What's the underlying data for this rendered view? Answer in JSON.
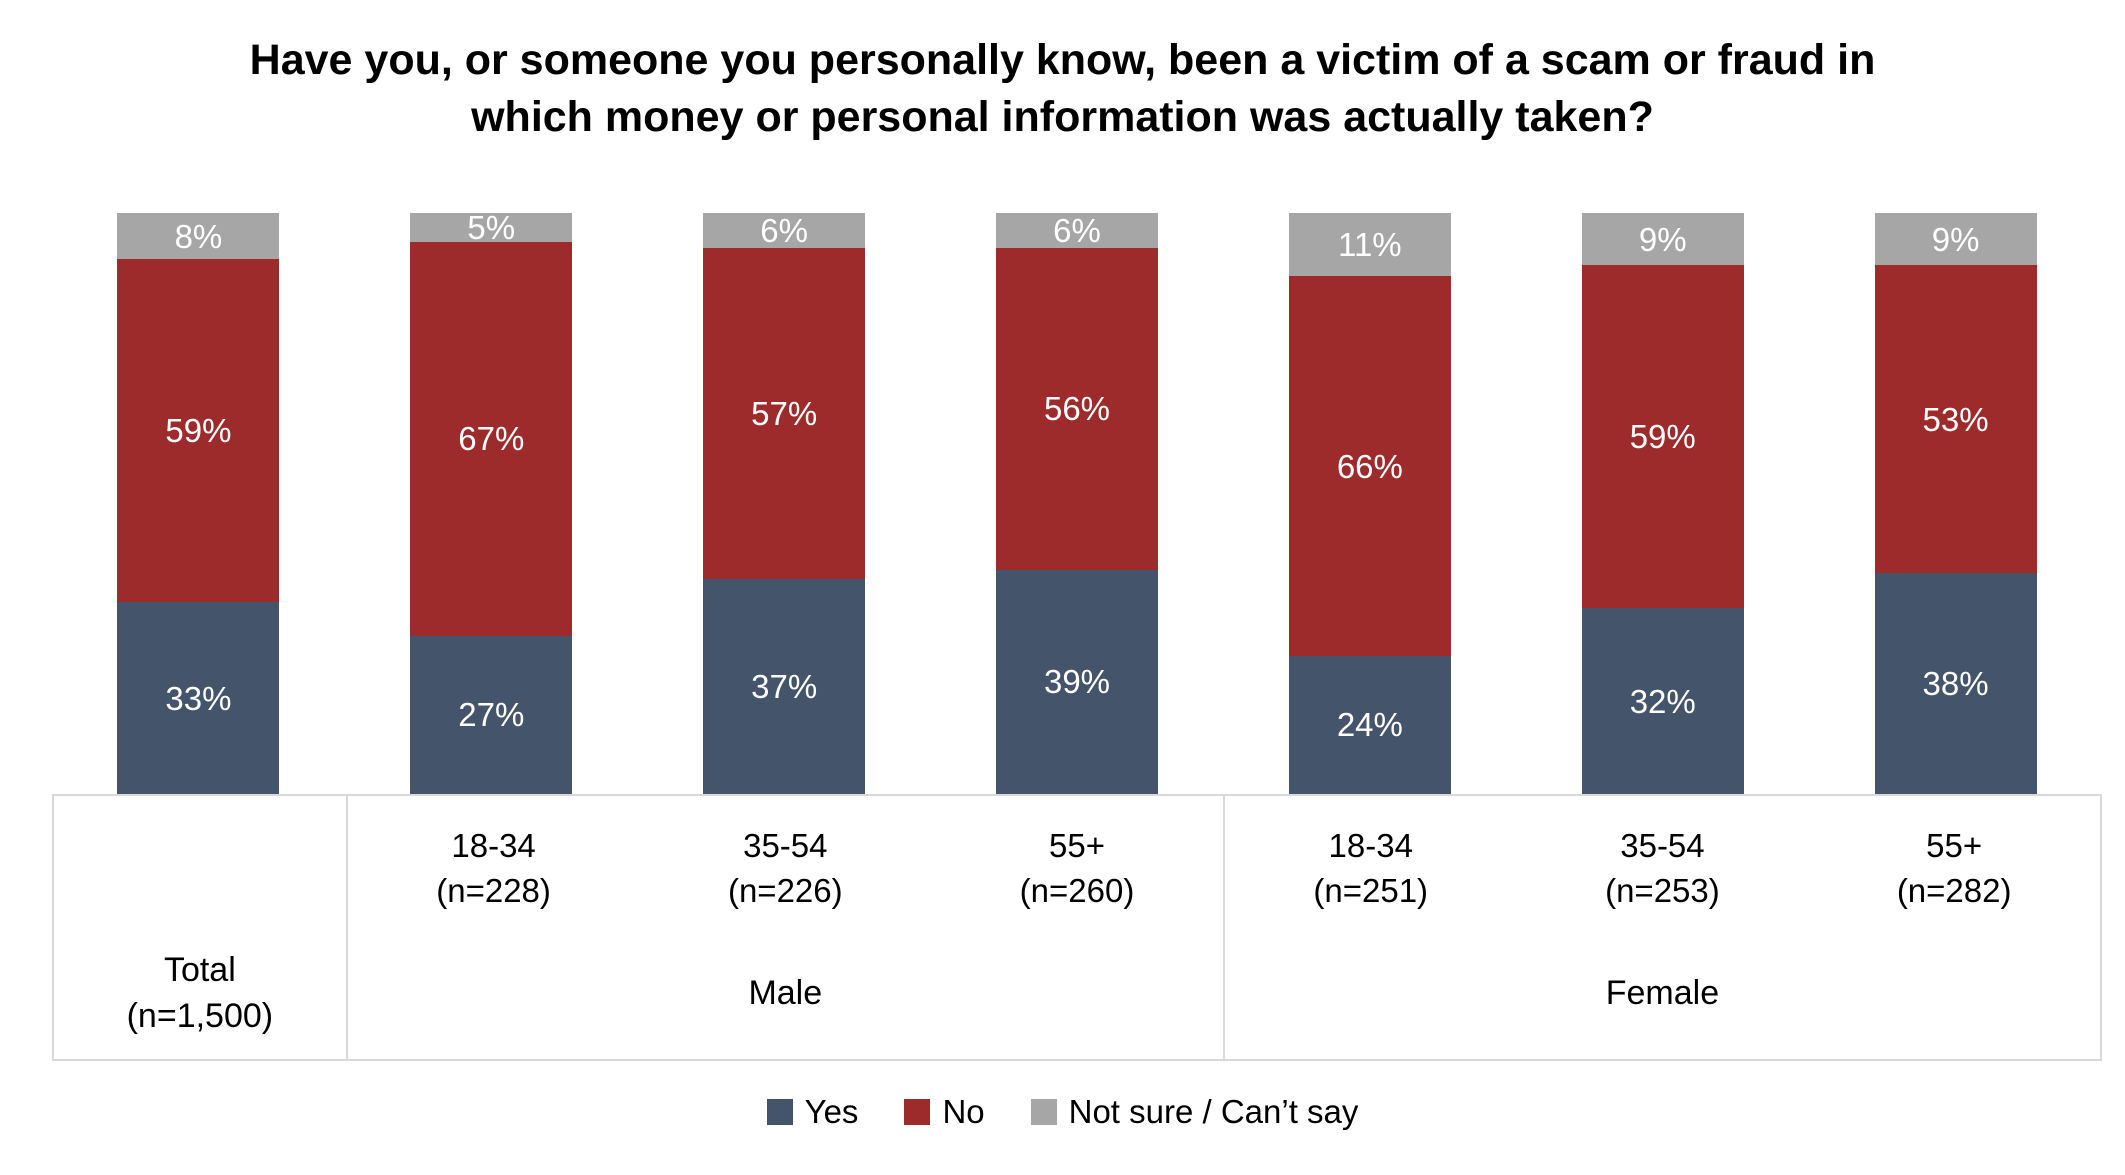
{
  "header": {
    "line1": "Have you, or someone you personally know, been a victim of a scam or fraud in",
    "line2": "which money or personal information was actually taken?"
  },
  "chart_data": {
    "type": "bar",
    "stacked": true,
    "title": "Have you, or someone you personally know, been a victim of a scam or fraud in which money or personal information was actually taken?",
    "value_suffix": "%",
    "legend_position": "bottom",
    "ylim": [
      0,
      100
    ],
    "grid": false,
    "categories": [
      "Total (n=1,500)",
      "Male 18-34 (n=228)",
      "Male 35-54 (n=226)",
      "Male 55+ (n=260)",
      "Female 18-34 (n=251)",
      "Female 35-54 (n=253)",
      "Female 55+ (n=282)"
    ],
    "series": [
      {
        "name": "Yes",
        "color": "#44546A",
        "values": [
          33,
          27,
          37,
          39,
          24,
          32,
          38
        ]
      },
      {
        "name": "No",
        "color": "#9E2B2B",
        "values": [
          59,
          67,
          57,
          56,
          66,
          59,
          53
        ]
      },
      {
        "name": "Not sure / Can’t say",
        "color": "#A6A6A6",
        "values": [
          8,
          5,
          6,
          6,
          11,
          9,
          9
        ]
      }
    ],
    "x_axis": {
      "sections": [
        {
          "label": "Total",
          "sublabel": "(n=1,500)",
          "columns": [
            {
              "line1": "",
              "line2": ""
            }
          ]
        },
        {
          "label": "Male",
          "sublabel": "",
          "columns": [
            {
              "line1": "18-34",
              "line2": "(n=228)"
            },
            {
              "line1": "35-54",
              "line2": "(n=226)"
            },
            {
              "line1": "55+",
              "line2": "(n=260)"
            }
          ]
        },
        {
          "label": "Female",
          "sublabel": "",
          "columns": [
            {
              "line1": "18-34",
              "line2": "(n=251)"
            },
            {
              "line1": "35-54",
              "line2": "(n=253)"
            },
            {
              "line1": "55+",
              "line2": "(n=282)"
            }
          ]
        }
      ]
    },
    "colors": {
      "yes": "#44546A",
      "no": "#9E2B2B",
      "not_sure": "#A6A6A6",
      "table_border": "#D9D9D9"
    }
  }
}
